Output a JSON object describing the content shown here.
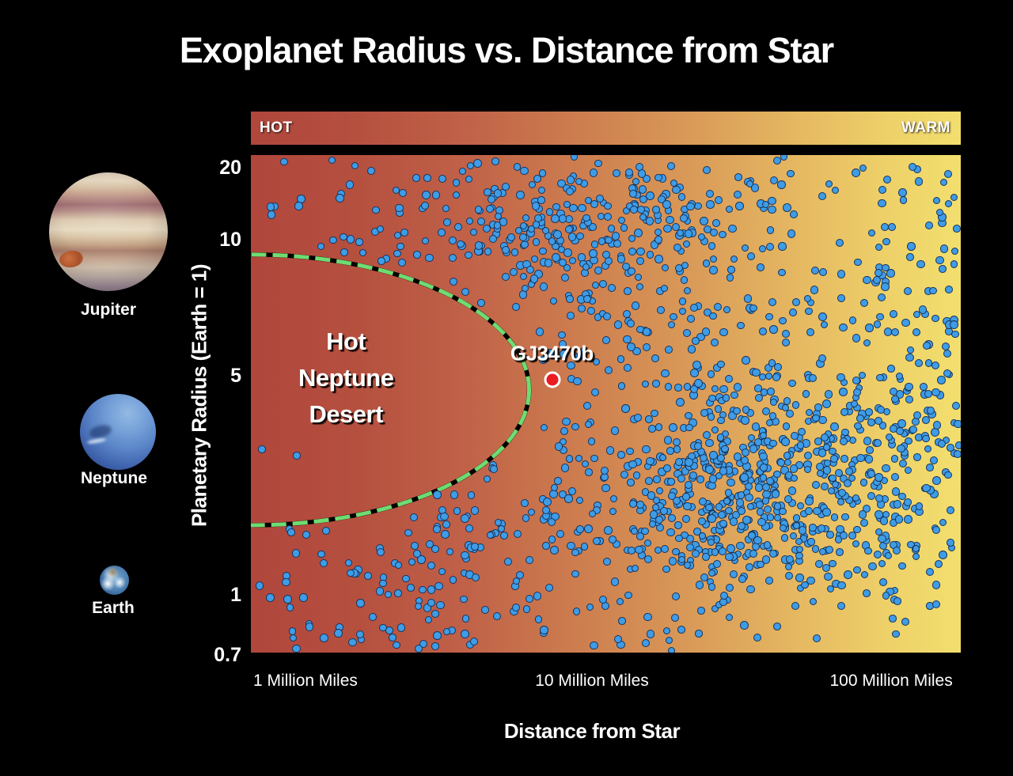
{
  "title": "Exoplanet Radius vs. Distance from Star",
  "temperature_bar": {
    "left_label": "HOT",
    "right_label": "WARM"
  },
  "planets": [
    {
      "name": "Jupiter"
    },
    {
      "name": "Neptune"
    },
    {
      "name": "Earth"
    }
  ],
  "colors": {
    "background": "#000000",
    "text": "#ffffff",
    "gradient_stops": [
      {
        "c": "#b0463c",
        "p": 0
      },
      {
        "c": "#b5503f",
        "p": 15
      },
      {
        "c": "#c06148",
        "p": 30
      },
      {
        "c": "#cc7b4e",
        "p": 45
      },
      {
        "c": "#d99a58",
        "p": 62
      },
      {
        "c": "#e6ba62",
        "p": 78
      },
      {
        "c": "#eed169",
        "p": 90
      },
      {
        "c": "#f2df6e",
        "p": 100
      }
    ],
    "point_fill": "#3f9ce6",
    "point_stroke": "#16335c",
    "desert_dash_green": "#6edc72",
    "desert_dash_black": "#000000",
    "highlight_red": "#ea1c22"
  },
  "chart_data": {
    "type": "scatter",
    "title": "Exoplanet Radius vs. Distance from Star",
    "xlabel": "Distance from Star",
    "ylabel": "Planetary Radius (Earth = 1)",
    "x_scale": "log, ~0.65 to ~170 million miles",
    "y_scale": "stylized log, ~0.7 to ~21 Earth radii",
    "grid": false,
    "x_ticks": [
      {
        "label": "1 Million Miles",
        "fx": 0.0769
      },
      {
        "label": "10 Million Miles",
        "fx": 0.4805
      },
      {
        "label": "100 Million Miles",
        "fx": 0.902
      }
    ],
    "y_ticks": [
      {
        "label": "20",
        "fy": 0.0254
      },
      {
        "label": "10",
        "fy": 0.17
      },
      {
        "label": "5",
        "fy": 0.4436
      },
      {
        "label": "1",
        "fy": 0.884
      },
      {
        "label": "0.7",
        "fy": 1.0045
      }
    ],
    "annotations": {
      "desert": {
        "label_lines": [
          "Hot",
          "Neptune",
          "Desert"
        ],
        "label_center": {
          "fx": 0.134,
          "fy": 0.448
        },
        "ellipse": {
          "cx_f": 0.0,
          "cy_f": 0.472,
          "rx_f": 0.392,
          "ry_f": 0.272
        }
      },
      "highlight": {
        "label": "GJ3470b",
        "fx": 0.425,
        "fy": 0.452,
        "label_fx": 0.424,
        "label_fy": 0.399
      }
    },
    "point_style": {
      "fill": "#3f9ce6",
      "stroke": "#16335c"
    },
    "scatter": {
      "seed": 1234,
      "clusters": [
        {
          "name": "hot-jupiter-cluster",
          "type": "gauss",
          "n": 260,
          "mx": 0.47,
          "sdx": 0.13,
          "my": 0.15,
          "sdy": 0.075
        },
        {
          "name": "top-spread",
          "type": "uniform",
          "n": 120,
          "x": [
            0.25,
            1.0
          ],
          "y": [
            0.01,
            0.33
          ]
        },
        {
          "name": "top-left-sparse",
          "type": "uniform",
          "n": 32,
          "x": [
            0.01,
            0.28
          ],
          "y": [
            0.01,
            0.22
          ]
        },
        {
          "name": "mid-field",
          "type": "uniform",
          "n": 170,
          "x": [
            0.4,
            1.0
          ],
          "y": [
            0.3,
            0.62
          ]
        },
        {
          "name": "small-planet-cloud",
          "type": "gauss",
          "n": 640,
          "mx": 0.74,
          "sdx": 0.145,
          "my": 0.685,
          "sdy": 0.115
        },
        {
          "name": "lower-mid-band",
          "type": "uniform",
          "n": 150,
          "x": [
            0.25,
            0.7
          ],
          "y": [
            0.6,
            0.99
          ]
        },
        {
          "name": "lower-left-sparse",
          "type": "uniform",
          "n": 80,
          "x": [
            0.01,
            0.28
          ],
          "y": [
            0.7,
            0.995
          ]
        },
        {
          "name": "right-edge-column",
          "type": "uniform",
          "n": 70,
          "x": [
            0.88,
            1.0
          ],
          "y": [
            0.03,
            0.97
          ]
        },
        {
          "name": "sprinkle",
          "type": "uniform",
          "n": 60,
          "x": [
            0.3,
            1.0
          ],
          "y": [
            0.02,
            0.99
          ]
        }
      ],
      "extra_points": [
        [
          0.065,
          0.605
        ],
        [
          0.016,
          0.592
        ]
      ]
    }
  }
}
